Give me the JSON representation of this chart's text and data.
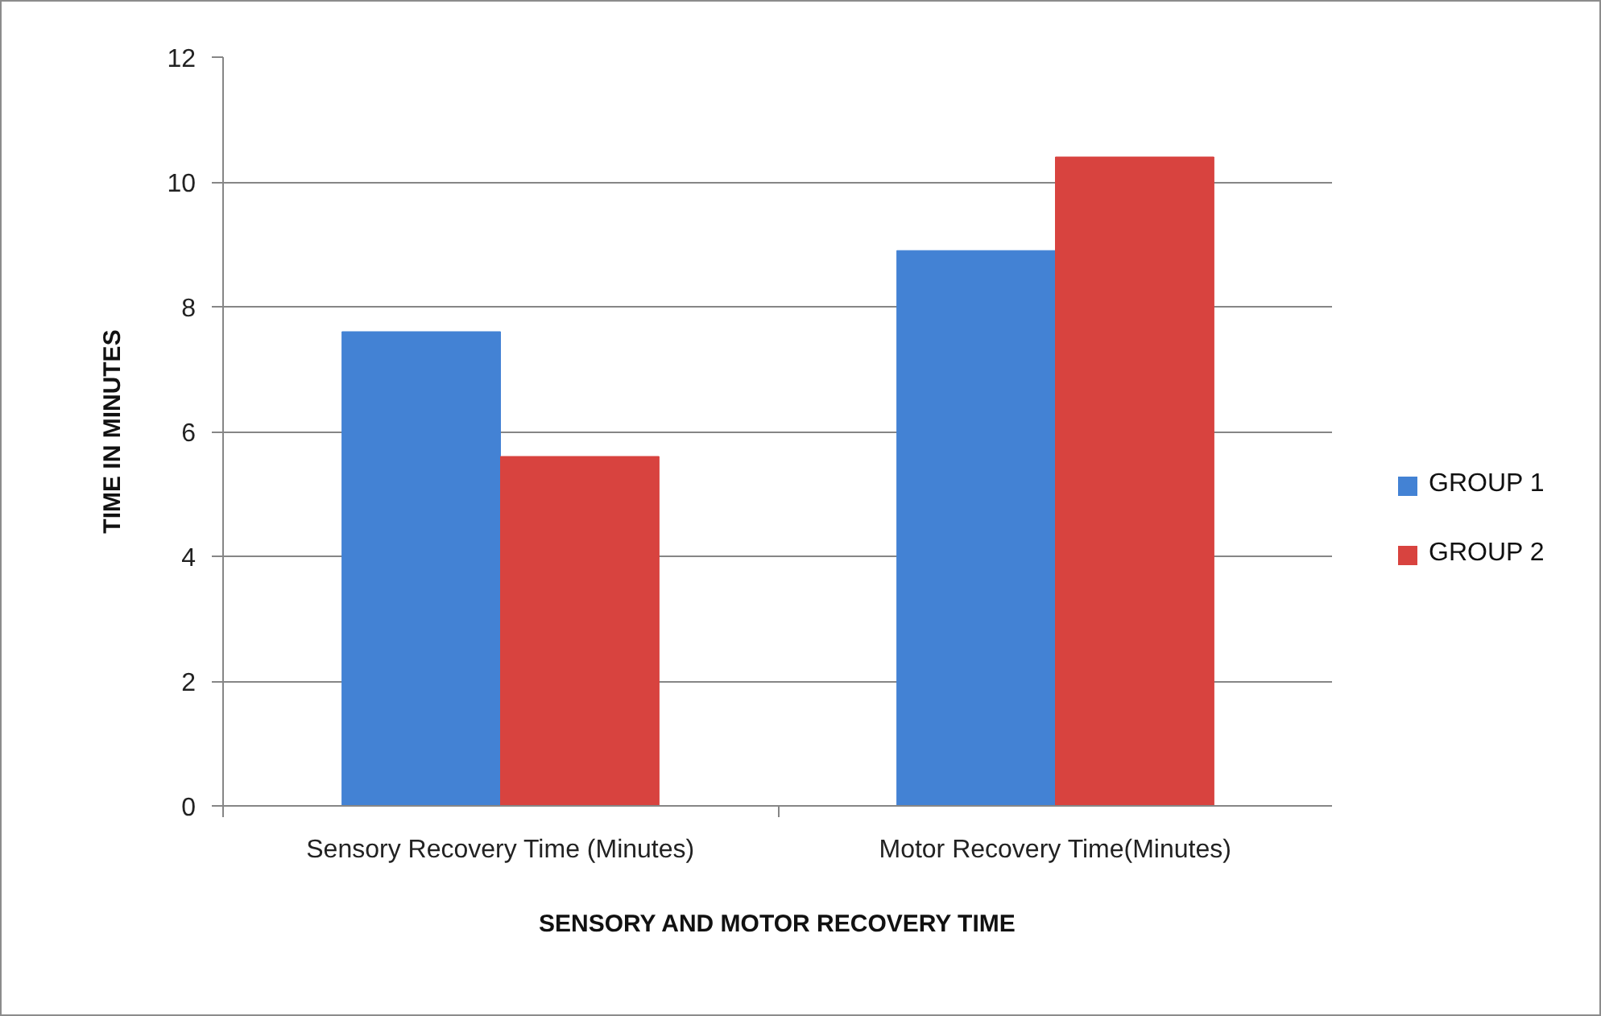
{
  "chart_data": {
    "type": "bar",
    "xlabel": "SENSORY AND MOTOR RECOVERY TIME",
    "ylabel": "TIME IN MINUTES",
    "categories": [
      "Sensory Recovery Time (Minutes)",
      "Motor Recovery Time(Minutes)"
    ],
    "series": [
      {
        "name": "GROUP 1",
        "color": "#4382d4",
        "values": [
          7.6,
          8.9
        ]
      },
      {
        "name": "GROUP 2",
        "color": "#d8433f",
        "values": [
          5.6,
          10.4
        ]
      }
    ],
    "ylim": [
      0,
      12
    ],
    "yticks": [
      0,
      2,
      4,
      6,
      8,
      10,
      12
    ],
    "grid": "y",
    "legend": "right"
  }
}
